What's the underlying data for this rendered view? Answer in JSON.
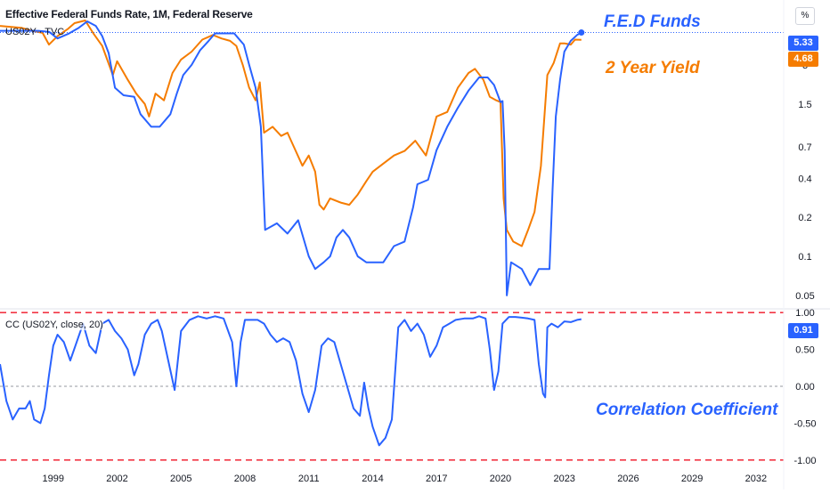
{
  "header": {
    "title": "Effective Federal Funds Rate, 1M, Federal Reserve",
    "overlay_symbol": "US02Y · TVC",
    "indicator_label": "CC (US02Y, close, 20)"
  },
  "annotations": {
    "fed_funds": "F.E.D Funds",
    "two_year": "2 Year Yield",
    "correlation": "Correlation Coefficient"
  },
  "scale_button": "%",
  "badges": {
    "fed_last": "5.33",
    "us02y_last": "4.68",
    "cc_last": "0.91"
  },
  "colors": {
    "fed": "#2962ff",
    "us02y": "#f57c00",
    "cc": "#2962ff",
    "band": "#f23645",
    "zero": "#9598a1",
    "axis_text": "#131722"
  },
  "chart_data": [
    {
      "type": "line",
      "yscale": "log",
      "ylim": [
        0.04,
        9.5
      ],
      "xlim": [
        1996.5,
        2033.3
      ],
      "y_ticks": [
        0.05,
        0.1,
        0.2,
        0.4,
        0.7,
        1.5,
        3
      ],
      "y_tick_labels": [
        "0.05",
        "0.1",
        "0.2",
        "0.4",
        "0.7",
        "1.5",
        "3"
      ],
      "series": [
        {
          "name": "Effective Federal Funds Rate",
          "color": "#2962ff",
          "x": [
            1996.5,
            1997.5,
            1998.3,
            1998.8,
            1999.2,
            1999.7,
            2000.2,
            2000.6,
            2001.0,
            2001.3,
            2001.6,
            2001.9,
            2002.3,
            2002.8,
            2003.1,
            2003.6,
            2004.0,
            2004.5,
            2004.8,
            2005.1,
            2005.5,
            2005.9,
            2006.3,
            2006.6,
            2007.0,
            2007.5,
            2007.7,
            2007.95,
            2008.2,
            2008.5,
            2008.75,
            2008.95,
            2009.5,
            2010.0,
            2010.5,
            2011.0,
            2011.3,
            2011.7,
            2012.0,
            2012.3,
            2012.6,
            2012.9,
            2013.3,
            2013.7,
            2014.0,
            2014.5,
            2015.0,
            2015.5,
            2015.9,
            2016.1,
            2016.6,
            2017.0,
            2017.5,
            2018.0,
            2018.5,
            2019.0,
            2019.4,
            2019.7,
            2020.0,
            2020.1,
            2020.2,
            2020.3,
            2020.5,
            2021.0,
            2021.4,
            2021.8,
            2022.1,
            2022.3,
            2022.45,
            2022.6,
            2022.8,
            2023.0,
            2023.3,
            2023.6,
            2023.8
          ],
          "y": [
            5.5,
            5.5,
            5.5,
            5.4,
            4.8,
            5.2,
            5.8,
            6.5,
            6.0,
            5.0,
            3.7,
            2.0,
            1.75,
            1.7,
            1.25,
            1.0,
            1.0,
            1.25,
            1.8,
            2.5,
            3.0,
            3.9,
            4.6,
            5.25,
            5.25,
            5.25,
            4.8,
            4.3,
            3.0,
            2.0,
            1.0,
            0.16,
            0.18,
            0.15,
            0.19,
            0.1,
            0.08,
            0.09,
            0.1,
            0.14,
            0.16,
            0.14,
            0.1,
            0.09,
            0.09,
            0.09,
            0.12,
            0.13,
            0.24,
            0.36,
            0.39,
            0.66,
            1.0,
            1.4,
            1.9,
            2.4,
            2.4,
            2.1,
            1.55,
            1.58,
            0.65,
            0.05,
            0.09,
            0.08,
            0.06,
            0.08,
            0.08,
            0.08,
            0.33,
            1.2,
            2.3,
            3.8,
            4.6,
            5.1,
            5.33
          ]
        },
        {
          "name": "US02Y",
          "color": "#f57c00",
          "x": [
            1996.5,
            1997.5,
            1998.0,
            1998.5,
            1998.8,
            1999.2,
            1999.7,
            2000.0,
            2000.5,
            2000.9,
            2001.3,
            2001.8,
            2002.0,
            2002.5,
            2002.9,
            2003.3,
            2003.5,
            2003.8,
            2004.2,
            2004.6,
            2005.0,
            2005.5,
            2006.0,
            2006.5,
            2006.9,
            2007.3,
            2007.6,
            2007.9,
            2008.2,
            2008.5,
            2008.7,
            2008.9,
            2009.3,
            2009.7,
            2010.0,
            2010.3,
            2010.7,
            2011.0,
            2011.3,
            2011.5,
            2011.7,
            2012.0,
            2012.5,
            2012.9,
            2013.3,
            2013.7,
            2014.0,
            2014.5,
            2015.0,
            2015.5,
            2016.0,
            2016.5,
            2017.0,
            2017.5,
            2018.0,
            2018.5,
            2018.8,
            2019.2,
            2019.5,
            2019.8,
            2020.0,
            2020.15,
            2020.3,
            2020.6,
            2021.0,
            2021.3,
            2021.6,
            2021.9,
            2022.2,
            2022.5,
            2022.8,
            2023.0,
            2023.3,
            2023.5,
            2023.8
          ],
          "y": [
            6.0,
            5.8,
            5.5,
            5.3,
            4.3,
            5.0,
            5.7,
            6.3,
            6.6,
            5.2,
            4.2,
            2.5,
            3.2,
            2.3,
            1.8,
            1.5,
            1.2,
            1.8,
            1.6,
            2.6,
            3.3,
            3.8,
            4.7,
            5.1,
            4.8,
            4.6,
            4.2,
            3.0,
            2.0,
            1.6,
            2.2,
            0.9,
            1.0,
            0.85,
            0.9,
            0.7,
            0.5,
            0.6,
            0.45,
            0.25,
            0.23,
            0.28,
            0.26,
            0.25,
            0.3,
            0.38,
            0.45,
            0.52,
            0.6,
            0.65,
            0.78,
            0.6,
            1.2,
            1.3,
            2.0,
            2.6,
            2.8,
            2.3,
            1.7,
            1.6,
            1.55,
            0.28,
            0.16,
            0.13,
            0.12,
            0.16,
            0.22,
            0.5,
            2.5,
            3.1,
            4.4,
            4.4,
            4.3,
            4.7,
            4.68
          ]
        }
      ]
    },
    {
      "type": "line",
      "ylim": [
        -1.05,
        1.05
      ],
      "xlim": [
        1996.5,
        2033.3
      ],
      "y_ticks": [
        -1.0,
        -0.5,
        0.0,
        0.5,
        1.0
      ],
      "y_tick_labels": [
        "-1.00",
        "-0.50",
        "0.00",
        "0.50",
        "1.00"
      ],
      "x_ticks": [
        1999,
        2002,
        2005,
        2008,
        2011,
        2014,
        2017,
        2020,
        2023,
        2026,
        2029,
        2032
      ],
      "x_tick_labels": [
        "1999",
        "2002",
        "2005",
        "2008",
        "2011",
        "2014",
        "2017",
        "2020",
        "2023",
        "2026",
        "2029",
        "2032"
      ],
      "series": [
        {
          "name": "CC (US02Y, close, 20)",
          "color": "#2962ff",
          "x": [
            1996.5,
            1996.8,
            1997.1,
            1997.4,
            1997.7,
            1997.9,
            1998.1,
            1998.4,
            1998.6,
            1998.8,
            1999.0,
            1999.2,
            1999.5,
            1999.8,
            2000.1,
            2000.4,
            2000.7,
            2001.0,
            2001.3,
            2001.6,
            2001.9,
            2002.2,
            2002.5,
            2002.8,
            2003.0,
            2003.3,
            2003.6,
            2003.9,
            2004.1,
            2004.4,
            2004.7,
            2005.0,
            2005.4,
            2005.8,
            2006.2,
            2006.6,
            2007.0,
            2007.4,
            2007.6,
            2007.8,
            2008.0,
            2008.3,
            2008.6,
            2008.9,
            2009.2,
            2009.5,
            2009.8,
            2010.1,
            2010.4,
            2010.7,
            2011.0,
            2011.3,
            2011.6,
            2011.9,
            2012.2,
            2012.5,
            2012.8,
            2013.1,
            2013.4,
            2013.6,
            2013.8,
            2014.0,
            2014.3,
            2014.6,
            2014.9,
            2015.2,
            2015.5,
            2015.8,
            2016.1,
            2016.4,
            2016.7,
            2017.0,
            2017.3,
            2017.6,
            2017.9,
            2018.3,
            2018.7,
            2019.0,
            2019.3,
            2019.5,
            2019.7,
            2019.9,
            2020.1,
            2020.4,
            2020.7,
            2021.0,
            2021.3,
            2021.6,
            2021.8,
            2022.0,
            2022.1,
            2022.2,
            2022.4,
            2022.7,
            2023.0,
            2023.3,
            2023.6,
            2023.8
          ],
          "y": [
            0.3,
            -0.2,
            -0.45,
            -0.3,
            -0.3,
            -0.2,
            -0.45,
            -0.5,
            -0.3,
            0.15,
            0.55,
            0.7,
            0.6,
            0.35,
            0.6,
            0.85,
            0.55,
            0.45,
            0.85,
            0.9,
            0.75,
            0.65,
            0.5,
            0.15,
            0.3,
            0.7,
            0.85,
            0.9,
            0.75,
            0.35,
            -0.05,
            0.75,
            0.9,
            0.95,
            0.92,
            0.95,
            0.92,
            0.6,
            0.0,
            0.6,
            0.9,
            0.9,
            0.9,
            0.85,
            0.7,
            0.6,
            0.65,
            0.6,
            0.35,
            -0.1,
            -0.35,
            -0.05,
            0.55,
            0.65,
            0.6,
            0.3,
            0.0,
            -0.3,
            -0.4,
            0.05,
            -0.3,
            -0.55,
            -0.8,
            -0.7,
            -0.45,
            0.8,
            0.9,
            0.75,
            0.85,
            0.7,
            0.4,
            0.55,
            0.8,
            0.85,
            0.9,
            0.92,
            0.92,
            0.95,
            0.92,
            0.5,
            -0.05,
            0.2,
            0.85,
            0.94,
            0.94,
            0.93,
            0.92,
            0.9,
            0.3,
            -0.1,
            -0.15,
            0.8,
            0.85,
            0.8,
            0.88,
            0.87,
            0.9,
            0.91
          ]
        }
      ]
    }
  ]
}
